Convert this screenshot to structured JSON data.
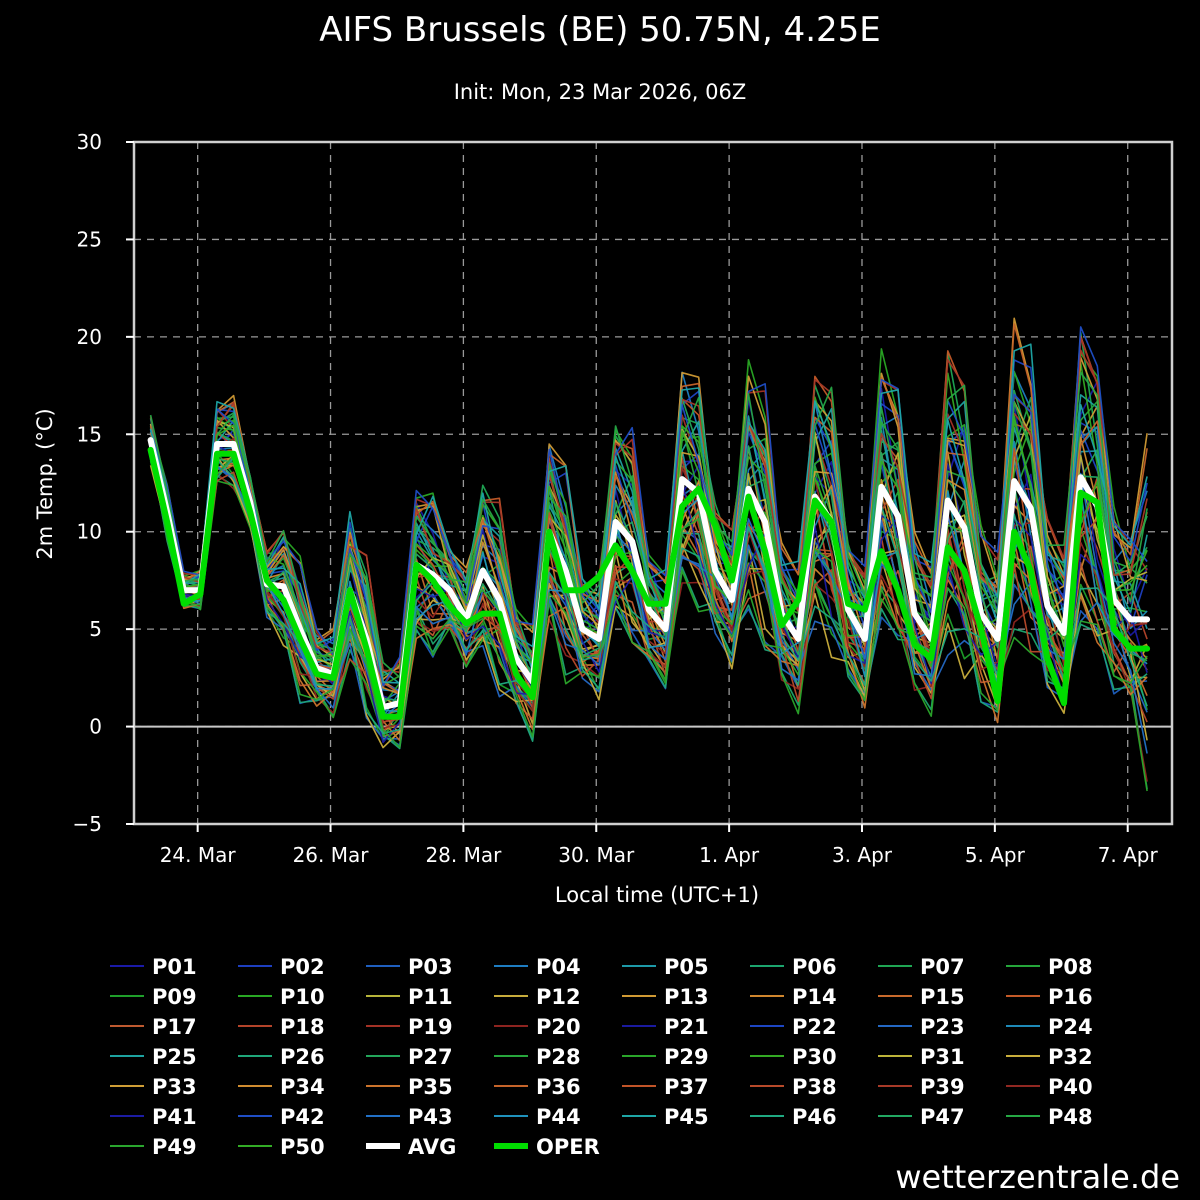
{
  "title": "AIFS Brussels (BE) 50.75N, 4.25E",
  "subtitle": "Init: Mon, 23 Mar 2026, 06Z",
  "brand": "wetterzentrale.de",
  "chart_data": {
    "type": "line",
    "ylabel": "2m Temp. (°C)",
    "xlabel": "Local time (UTC+1)",
    "ylim": [
      -5,
      30
    ],
    "yticks": [
      -5,
      0,
      5,
      10,
      15,
      20,
      25,
      30
    ],
    "x_unit": "hours since 23 Mar 2026 07:00 local",
    "xlim": [
      -6,
      369
    ],
    "xticks": [
      {
        "label": "24. Mar",
        "x": 17
      },
      {
        "label": "26. Mar",
        "x": 65
      },
      {
        "label": "28. Mar",
        "x": 113
      },
      {
        "label": "30. Mar",
        "x": 161
      },
      {
        "label": "1. Apr",
        "x": 209
      },
      {
        "label": "3. Apr",
        "x": 257
      },
      {
        "label": "5. Apr",
        "x": 305
      },
      {
        "label": "7. Apr",
        "x": 353
      }
    ],
    "grid": true,
    "zero_line": true,
    "series_x": [
      0,
      6,
      12,
      18,
      24,
      30,
      36,
      42,
      48,
      54,
      60,
      66,
      72,
      78,
      84,
      90,
      96,
      102,
      108,
      114,
      120,
      126,
      132,
      138,
      144,
      150,
      156,
      162,
      168,
      174,
      180,
      186,
      192,
      198,
      204,
      210,
      216,
      222,
      228,
      234,
      240,
      246,
      252,
      258,
      264,
      270,
      276,
      282,
      288,
      294,
      300,
      306,
      312,
      318,
      324,
      330,
      336,
      342,
      348,
      354,
      360
    ],
    "avg": {
      "name": "AVG",
      "color": "#ffffff",
      "values": [
        14.7,
        11.0,
        7.0,
        7.0,
        14.5,
        14.5,
        11.5,
        7.3,
        7.2,
        5.0,
        3.0,
        2.7,
        7.0,
        4.5,
        1.0,
        1.2,
        8.3,
        7.8,
        7.0,
        5.5,
        8.0,
        6.5,
        3.5,
        2.3,
        10.0,
        8.0,
        5.0,
        4.5,
        10.5,
        9.5,
        6.0,
        5.0,
        12.7,
        12.0,
        8.0,
        6.5,
        12.2,
        10.5,
        5.8,
        4.5,
        11.8,
        10.5,
        6.0,
        4.5,
        12.3,
        10.8,
        5.8,
        4.5,
        11.6,
        10.2,
        5.8,
        4.5,
        12.6,
        11.2,
        6.2,
        4.8,
        12.8,
        11.3,
        6.5,
        5.5,
        5.5
      ]
    },
    "oper": {
      "name": "OPER",
      "color": "#00dd00",
      "values": [
        14.2,
        10.5,
        6.3,
        6.8,
        14.0,
        14.0,
        11.0,
        7.5,
        6.5,
        4.5,
        2.7,
        2.5,
        7.0,
        4.0,
        0.5,
        0.5,
        8.3,
        7.5,
        6.2,
        5.3,
        5.8,
        5.8,
        2.7,
        1.5,
        10.0,
        7.0,
        7.0,
        7.7,
        9.3,
        8.0,
        6.3,
        6.3,
        11.3,
        12.2,
        10.3,
        7.5,
        11.8,
        9.0,
        5.2,
        6.5,
        11.6,
        10.5,
        6.3,
        6.0,
        9.0,
        7.0,
        4.2,
        3.5,
        9.2,
        8.0,
        5.0,
        1.3,
        10.0,
        8.0,
        3.5,
        1.2,
        12.0,
        11.5,
        5.0,
        4.0,
        4.0
      ]
    },
    "ensemble": {
      "count": 50,
      "label_prefix": "P",
      "note": "members spread around the average; colors per member listed in legend",
      "spread_by_lead_time_c": [
        1.0,
        3.0,
        3.8,
        4.6,
        5.4,
        6.2,
        7.0
      ]
    },
    "legend": [
      {
        "label": "P01",
        "color": "#1a1aa8"
      },
      {
        "label": "P02",
        "color": "#1d3fc0"
      },
      {
        "label": "P03",
        "color": "#1f5fbf"
      },
      {
        "label": "P04",
        "color": "#1e7dc2"
      },
      {
        "label": "P05",
        "color": "#1d9aa8"
      },
      {
        "label": "P06",
        "color": "#1ca56e"
      },
      {
        "label": "P07",
        "color": "#1fa653"
      },
      {
        "label": "P08",
        "color": "#25a63a"
      },
      {
        "label": "P09",
        "color": "#1f9f2a"
      },
      {
        "label": "P10",
        "color": "#29a824"
      },
      {
        "label": "P11",
        "color": "#b7b43a"
      },
      {
        "label": "P12",
        "color": "#c7ac3c"
      },
      {
        "label": "P13",
        "color": "#d09a34"
      },
      {
        "label": "P14",
        "color": "#d0862e"
      },
      {
        "label": "P15",
        "color": "#c96a2c"
      },
      {
        "label": "P16",
        "color": "#c45a28"
      },
      {
        "label": "P17",
        "color": "#bf5a30"
      },
      {
        "label": "P18",
        "color": "#b4442a"
      },
      {
        "label": "P19",
        "color": "#a43226"
      },
      {
        "label": "P20",
        "color": "#8e2420"
      },
      {
        "label": "P21",
        "color": "#1a1aa0"
      },
      {
        "label": "P22",
        "color": "#1d46c4"
      },
      {
        "label": "P23",
        "color": "#2468c4"
      },
      {
        "label": "P24",
        "color": "#1e8ab8"
      },
      {
        "label": "P25",
        "color": "#1da3a0"
      },
      {
        "label": "P26",
        "color": "#1fa77a"
      },
      {
        "label": "P27",
        "color": "#23a65a"
      },
      {
        "label": "P28",
        "color": "#27a63c"
      },
      {
        "label": "P29",
        "color": "#2aa52a"
      },
      {
        "label": "P30",
        "color": "#34aa24"
      },
      {
        "label": "P31",
        "color": "#bdb43a"
      },
      {
        "label": "P32",
        "color": "#c9ae3c"
      },
      {
        "label": "P33",
        "color": "#cf9e36"
      },
      {
        "label": "P34",
        "color": "#d08c30"
      },
      {
        "label": "P35",
        "color": "#cc742c"
      },
      {
        "label": "P36",
        "color": "#c6642a"
      },
      {
        "label": "P37",
        "color": "#c15428"
      },
      {
        "label": "P38",
        "color": "#b84a2a"
      },
      {
        "label": "P39",
        "color": "#a83a28"
      },
      {
        "label": "P40",
        "color": "#922822"
      },
      {
        "label": "P41",
        "color": "#1c1ca4"
      },
      {
        "label": "P42",
        "color": "#1f4ec6"
      },
      {
        "label": "P43",
        "color": "#2270c6"
      },
      {
        "label": "P44",
        "color": "#1f92bc"
      },
      {
        "label": "P45",
        "color": "#1ea6a6"
      },
      {
        "label": "P46",
        "color": "#1fa982"
      },
      {
        "label": "P47",
        "color": "#22a862"
      },
      {
        "label": "P48",
        "color": "#26a844"
      },
      {
        "label": "P49",
        "color": "#2aa62e"
      },
      {
        "label": "P50",
        "color": "#33ac26"
      },
      {
        "label": "AVG",
        "color": "#ffffff"
      },
      {
        "label": "OPER",
        "color": "#00dd00"
      }
    ]
  }
}
